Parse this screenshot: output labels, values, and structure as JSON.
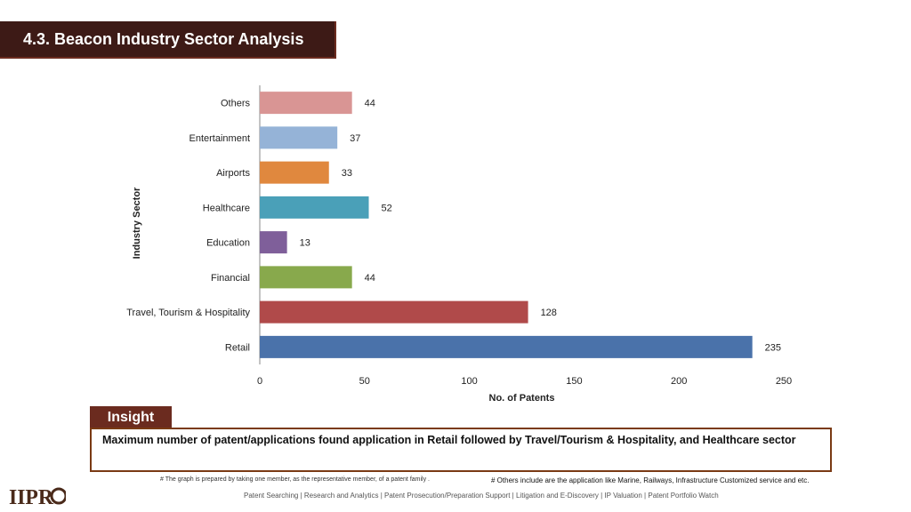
{
  "header": {
    "title": "4.3. Beacon Industry Sector Analysis"
  },
  "chart_data": {
    "type": "bar",
    "orientation": "horizontal",
    "categories": [
      "Others",
      "Entertainment",
      "Airports",
      "Healthcare",
      "Education",
      "Financial",
      "Travel, Tourism & Hospitality",
      "Retail"
    ],
    "values": [
      44,
      37,
      33,
      52,
      13,
      44,
      128,
      235
    ],
    "colors": [
      "#d99594",
      "#95b3d7",
      "#e0883e",
      "#4aa0b8",
      "#7f5f9a",
      "#88a94c",
      "#b04a4a",
      "#4a72aa"
    ],
    "xlabel": "No. of Patents",
    "ylabel": "Industry Sector",
    "xlim": [
      0,
      250
    ],
    "xticks": [
      0,
      50,
      100,
      150,
      200,
      250
    ],
    "grid": false,
    "legend": "none"
  },
  "insight": {
    "label": "Insight",
    "text": "Maximum number of patent/applications found application in Retail followed by Travel/Tourism & Hospitality, and Healthcare sector"
  },
  "footnotes": {
    "left": "# The graph is prepared by taking one member, as the representative member, of a patent family .",
    "right": "# Others include are the application like Marine, Railways, Infrastructure Customized service and etc."
  },
  "footer": {
    "logo_text": "IIPRD",
    "links": "Patent Searching | Research and Analytics | Patent Prosecution/Preparation Support | Litigation and E-Discovery | IP Valuation | Patent Portfolio Watch"
  }
}
